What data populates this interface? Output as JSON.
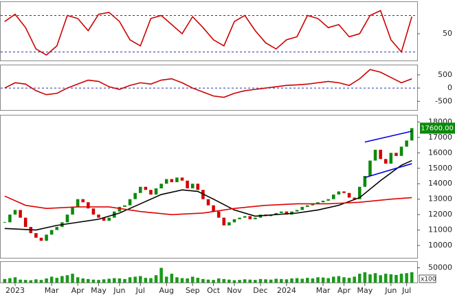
{
  "chart_data": [
    {
      "type": "line",
      "ylim": [
        6,
        102
      ],
      "yticks": [
        50
      ],
      "reference_lines": [
        80,
        20
      ],
      "series": [
        {
          "color": "#cc0000",
          "x": [
            0,
            2,
            4,
            6,
            8,
            10,
            12,
            14,
            16,
            18,
            20,
            22,
            24,
            26,
            28,
            30,
            32,
            34,
            36,
            38,
            40,
            42,
            44,
            46,
            48,
            50,
            52,
            54,
            56,
            58,
            60,
            62,
            64,
            66,
            68,
            70,
            72,
            74,
            76,
            78
          ],
          "values": [
            70,
            82,
            60,
            25,
            15,
            30,
            80,
            75,
            55,
            82,
            85,
            70,
            40,
            30,
            75,
            80,
            65,
            50,
            78,
            60,
            40,
            30,
            70,
            80,
            55,
            35,
            25,
            40,
            45,
            80,
            75,
            60,
            65,
            45,
            50,
            80,
            88,
            40,
            20,
            78
          ]
        }
      ]
    },
    {
      "type": "line",
      "ylim": [
        -830,
        860
      ],
      "yticks": [
        500,
        0,
        -500
      ],
      "reference_lines": [
        0
      ],
      "series": [
        {
          "color": "#cc0000",
          "x": [
            0,
            2,
            4,
            6,
            8,
            10,
            12,
            14,
            16,
            18,
            20,
            22,
            24,
            26,
            28,
            30,
            32,
            34,
            36,
            38,
            40,
            42,
            44,
            46,
            48,
            50,
            52,
            54,
            56,
            58,
            60,
            62,
            64,
            66,
            68,
            70,
            72,
            74,
            76,
            78
          ],
          "values": [
            0,
            200,
            150,
            -100,
            -250,
            -200,
            0,
            150,
            300,
            250,
            50,
            -50,
            100,
            200,
            150,
            300,
            350,
            200,
            0,
            -150,
            -300,
            -350,
            -200,
            -100,
            -50,
            0,
            50,
            100,
            120,
            150,
            200,
            250,
            200,
            100,
            350,
            700,
            600,
            400,
            200,
            350
          ]
        }
      ]
    },
    {
      "type": "candlestick",
      "ylim": [
        9200,
        18420
      ],
      "yticks": [
        10000,
        11000,
        12000,
        13000,
        14000,
        15000,
        16000,
        17000,
        18000
      ],
      "up_color": "#0b8a0b",
      "down_color": "#d40000",
      "last_value_label": "17600.00",
      "values": [
        11500,
        12000,
        12300,
        11800,
        11200,
        10800,
        10500,
        10300,
        10700,
        11000,
        11200,
        11500,
        12000,
        12500,
        13000,
        12800,
        12400,
        12000,
        11800,
        11600,
        11800,
        12200,
        12500,
        12600,
        13000,
        13400,
        13800,
        13600,
        13300,
        13700,
        14000,
        14300,
        14100,
        14400,
        14200,
        13700,
        14000,
        13600,
        13000,
        12600,
        12200,
        11800,
        11300,
        11500,
        11700,
        11800,
        11900,
        11700,
        11800,
        12000,
        11900,
        12000,
        12100,
        12200,
        12000,
        12200,
        12300,
        12500,
        12600,
        12700,
        12800,
        12900,
        13000,
        13300,
        13500,
        13400,
        13100,
        13000,
        13800,
        14500,
        15500,
        16200,
        15600,
        15300,
        16000,
        15800,
        16400,
        16800,
        17600
      ],
      "series": [
        {
          "color": "#000000",
          "x": [
            0,
            6,
            10,
            14,
            18,
            22,
            26,
            30,
            34,
            37,
            40,
            44,
            48,
            52,
            56,
            60,
            64,
            68,
            72,
            76,
            78
          ],
          "values": [
            11100,
            11000,
            11300,
            11500,
            11700,
            12100,
            12700,
            13300,
            13600,
            13500,
            13000,
            12300,
            11900,
            12000,
            12100,
            12300,
            12600,
            13100,
            14200,
            15200,
            15500
          ]
        },
        {
          "color": "#e00000",
          "x": [
            0,
            4,
            8,
            14,
            20,
            26,
            32,
            38,
            44,
            50,
            56,
            62,
            68,
            74,
            78
          ],
          "values": [
            13200,
            12600,
            12400,
            12500,
            12500,
            12200,
            12000,
            12100,
            12400,
            12600,
            12700,
            12700,
            12800,
            13000,
            13100
          ]
        },
        {
          "color": "#0000dd",
          "x": [
            69,
            78
          ],
          "values": [
            16700,
            17400
          ]
        },
        {
          "color": "#0000dd",
          "x": [
            69,
            78
          ],
          "values": [
            14400,
            15300
          ]
        }
      ]
    },
    {
      "type": "bar",
      "ylim": [
        0,
        70000
      ],
      "yticks": [
        50000
      ],
      "unit_label": "x100",
      "color": "#1a9a1a",
      "xlim": [
        -0.5,
        78.5
      ],
      "xticks": [
        {
          "value": 2,
          "label": "2023"
        },
        {
          "value": 9,
          "label": "Mar"
        },
        {
          "value": 14,
          "label": "Apr"
        },
        {
          "value": 18,
          "label": "May"
        },
        {
          "value": 22,
          "label": "Jun"
        },
        {
          "value": 26,
          "label": "Jul"
        },
        {
          "value": 31,
          "label": "Aug"
        },
        {
          "value": 36,
          "label": "Sep"
        },
        {
          "value": 40,
          "label": "Oct"
        },
        {
          "value": 44,
          "label": "Nov"
        },
        {
          "value": 49,
          "label": "Dec"
        },
        {
          "value": 54,
          "label": "2024"
        },
        {
          "value": 61,
          "label": "Mar"
        },
        {
          "value": 65,
          "label": "Apr"
        },
        {
          "value": 69,
          "label": "May"
        },
        {
          "value": 74,
          "label": "Jun"
        },
        {
          "value": 77,
          "label": "Jul"
        }
      ],
      "values": [
        12000,
        15000,
        18000,
        10000,
        9000,
        8000,
        11000,
        9000,
        14000,
        20000,
        16000,
        22000,
        25000,
        30000,
        18000,
        14000,
        12000,
        10000,
        9000,
        11000,
        13000,
        15000,
        14000,
        12000,
        18000,
        20000,
        22000,
        16000,
        15000,
        25000,
        50000,
        20000,
        30000,
        18000,
        15000,
        14000,
        20000,
        16000,
        12000,
        10000,
        9000,
        14000,
        12000,
        10000,
        8000,
        9000,
        11000,
        10000,
        9000,
        12000,
        11000,
        10000,
        13000,
        12000,
        11000,
        14000,
        15000,
        13000,
        16000,
        14000,
        18000,
        17000,
        15000,
        20000,
        22000,
        18000,
        16000,
        20000,
        30000,
        35000,
        28000,
        32000,
        25000,
        30000,
        28000,
        26000,
        30000,
        32000,
        35000
      ]
    }
  ]
}
